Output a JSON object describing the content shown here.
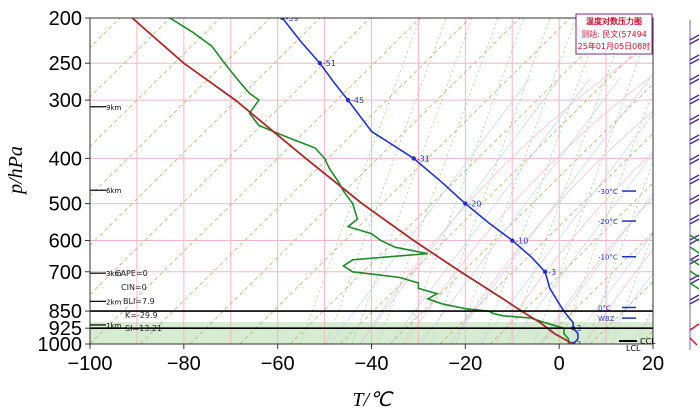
{
  "chart_data": {
    "type": "line",
    "xlabel": "T/℃",
    "ylabel": "p/hPa",
    "xlim": [
      -100,
      20
    ],
    "ylim": [
      1000,
      200
    ],
    "y_scale": "log",
    "x_ticks": [
      "−100",
      "−80",
      "−60",
      "−40",
      "−20",
      "0",
      "20"
    ],
    "x_tick_values": [
      -100,
      -80,
      -60,
      -40,
      -20,
      0,
      20
    ],
    "y_ticks": [
      "200",
      "250",
      "300",
      "400",
      "500",
      "600",
      "700",
      "850",
      "925",
      "1000"
    ],
    "y_tick_values": [
      200,
      250,
      300,
      400,
      500,
      600,
      700,
      850,
      925,
      1000
    ],
    "series": [
      {
        "color": "#2233bb",
        "points": [
          [
            -59,
            200
          ],
          [
            -55,
            225
          ],
          [
            -51,
            250
          ],
          [
            -48,
            275
          ],
          [
            -45,
            300
          ],
          [
            -40,
            350
          ],
          [
            -31,
            400
          ],
          [
            -25,
            450
          ],
          [
            -20,
            500
          ],
          [
            -15,
            550
          ],
          [
            -10,
            600
          ],
          [
            -6,
            650
          ],
          [
            -3,
            700
          ],
          [
            -2,
            760
          ],
          [
            0,
            820
          ],
          [
            1,
            850
          ],
          [
            2,
            875
          ],
          [
            3,
            900
          ],
          [
            3,
            925
          ],
          [
            4,
            950
          ],
          [
            4,
            975
          ],
          [
            3,
            1000
          ]
        ],
        "point_labels": [
          {
            "p": 200,
            "t": -59,
            "text": "-59"
          },
          {
            "p": 250,
            "t": -51,
            "text": "-51"
          },
          {
            "p": 300,
            "t": -45,
            "text": "-45"
          },
          {
            "p": 400,
            "t": -31,
            "text": "-31"
          },
          {
            "p": 500,
            "t": -20,
            "text": "-20"
          },
          {
            "p": 600,
            "t": -10,
            "text": "-10"
          },
          {
            "p": 700,
            "t": -3,
            "text": "-3"
          },
          {
            "p": 925,
            "t": 3,
            "text": "3"
          },
          {
            "p": 1000,
            "t": 3,
            "text": "3"
          }
        ]
      },
      {
        "color": "#1f8a2a",
        "points": [
          [
            -83,
            200
          ],
          [
            -78,
            215
          ],
          [
            -74,
            230
          ],
          [
            -72,
            245
          ],
          [
            -70,
            260
          ],
          [
            -68,
            275
          ],
          [
            -66,
            290
          ],
          [
            -64,
            300
          ],
          [
            -66,
            320
          ],
          [
            -64,
            340
          ],
          [
            -58,
            360
          ],
          [
            -52,
            380
          ],
          [
            -50,
            400
          ],
          [
            -49,
            420
          ],
          [
            -47,
            450
          ],
          [
            -46,
            470
          ],
          [
            -44,
            500
          ],
          [
            -43,
            540
          ],
          [
            -45,
            560
          ],
          [
            -40,
            580
          ],
          [
            -38,
            600
          ],
          [
            -35,
            620
          ],
          [
            -28,
            640
          ],
          [
            -36,
            650
          ],
          [
            -44,
            660
          ],
          [
            -46,
            680
          ],
          [
            -44,
            700
          ],
          [
            -34,
            720
          ],
          [
            -30,
            740
          ],
          [
            -30,
            760
          ],
          [
            -26,
            780
          ],
          [
            -28,
            800
          ],
          [
            -25,
            820
          ],
          [
            -20,
            840
          ],
          [
            -15,
            850
          ],
          [
            -14,
            860
          ],
          [
            -12,
            870
          ],
          [
            -6,
            880
          ],
          [
            -3,
            900
          ],
          [
            1,
            925
          ],
          [
            1,
            950
          ],
          [
            2,
            975
          ],
          [
            2,
            1000
          ]
        ]
      },
      {
        "color": "#a52a2a",
        "points": [
          [
            -91,
            200
          ],
          [
            -80,
            250
          ],
          [
            -69,
            300
          ],
          [
            -54,
            400
          ],
          [
            -42,
            500
          ],
          [
            -31,
            600
          ],
          [
            -21,
            700
          ],
          [
            -12,
            800
          ],
          [
            -8,
            850
          ],
          [
            -4,
            900
          ],
          [
            -1,
            950
          ],
          [
            3,
            1000
          ]
        ]
      }
    ],
    "reference_lines": [
      {
        "p": 850,
        "color": "#000000"
      },
      {
        "p": 925,
        "color": "#000000"
      }
    ],
    "height_labels": [
      "9km",
      "6km",
      "3km",
      "2km",
      "1km"
    ],
    "height_label_levels": [
      310,
      468,
      705,
      810,
      910
    ],
    "indices": {
      "cape": "CAPE=0",
      "cin": "CIN=0",
      "bli": "BLI=7.9",
      "k": "K=-29.9",
      "si": "SI=13.21"
    },
    "isotherm_markers": [
      {
        "text": "-30°C",
        "p": 470
      },
      {
        "text": "-20°C",
        "p": 545
      },
      {
        "text": "-10°C",
        "p": 650
      },
      {
        "text": "0°C",
        "p": 835
      },
      {
        "text": "WBZ",
        "p": 880
      }
    ],
    "legend": {
      "title": "温度对数压力图",
      "station": "测站: 民文(57494",
      "time": "25年01月05日08时"
    },
    "ccl": {
      "text": "CCL",
      "lcl": "LCL"
    }
  }
}
